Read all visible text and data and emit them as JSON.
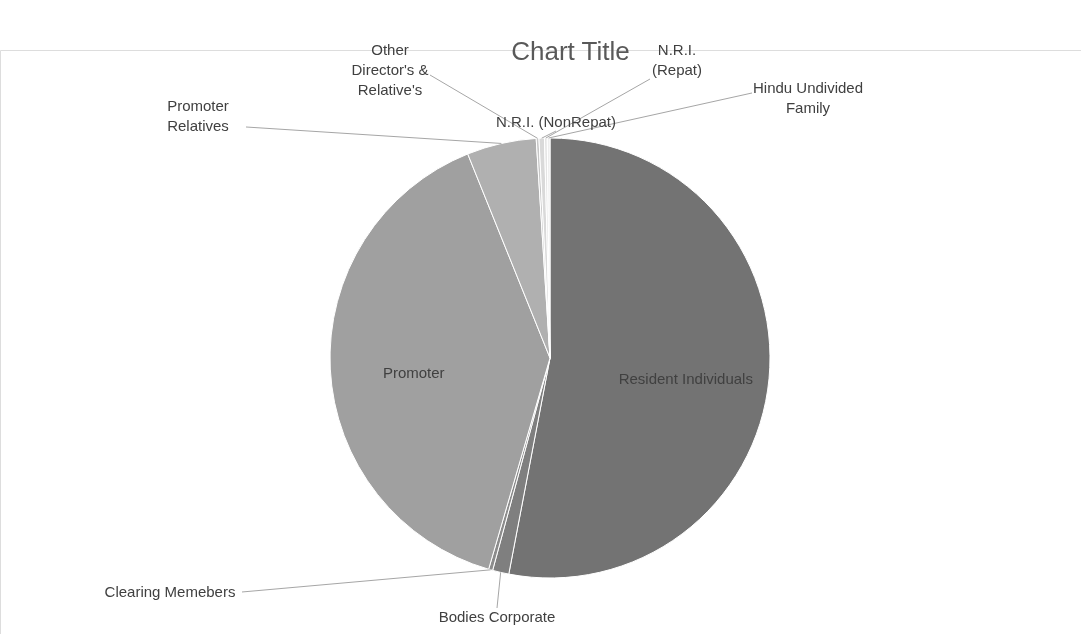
{
  "chart_data": {
    "type": "pie",
    "title": "Chart Title",
    "categories": [
      "Resident Individuals",
      "Bodies Corporate",
      "Clearing Memebers",
      "Promoter",
      "Promoter Relatives",
      "Other Director's & Relative's",
      "N.R.I. (NonRepat)",
      "N.R.I. (Repat)",
      "Hindu Undivided Family"
    ],
    "values": [
      53.0,
      1.2,
      0.3,
      39.4,
      5.1,
      0.2,
      0.4,
      0.2,
      0.2
    ],
    "colors": [
      "#737373",
      "#7f7f7f",
      "#8c8c8c",
      "#a0a0a0",
      "#b0b0b0",
      "#c6c6c6",
      "#d9d9d9",
      "#e4e4e4",
      "#eeeeee"
    ],
    "legend": false
  }
}
